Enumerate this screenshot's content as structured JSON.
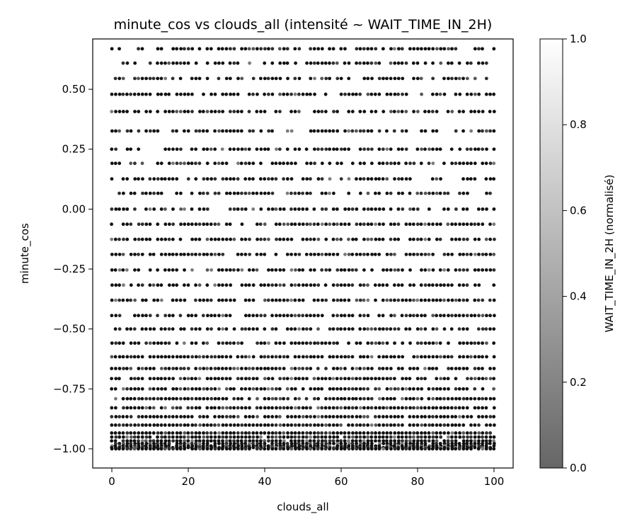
{
  "chart_data": {
    "type": "scatter",
    "title": "minute_cos vs clouds_all (intensité ~ WAIT_TIME_IN_2H)",
    "xlabel": "clouds_all",
    "ylabel": "minute_cos",
    "xlim": [
      -5,
      105
    ],
    "ylim": [
      -1.08,
      0.71
    ],
    "xticks": [
      0,
      20,
      40,
      60,
      80,
      100
    ],
    "xtick_labels": [
      "0",
      "20",
      "40",
      "60",
      "80",
      "100"
    ],
    "yticks": [
      -1.0,
      -0.75,
      -0.5,
      -0.25,
      0.0,
      0.25,
      0.5
    ],
    "ytick_labels": [
      "−1.00",
      "−0.75",
      "−0.50",
      "−0.25",
      "0.00",
      "0.25",
      "0.50"
    ],
    "grid": false,
    "x_range": [
      0,
      100
    ],
    "y_levels": [
      0.669,
      0.609,
      0.545,
      0.479,
      0.407,
      0.326,
      0.25,
      0.191,
      0.126,
      0.066,
      0.0,
      -0.063,
      -0.126,
      -0.189,
      -0.254,
      -0.317,
      -0.38,
      -0.444,
      -0.5,
      -0.559,
      -0.616,
      -0.665,
      -0.707,
      -0.75,
      -0.791,
      -0.829,
      -0.866,
      -0.901,
      -0.934,
      -0.951,
      -0.967,
      -0.978,
      -0.988,
      -0.995,
      -1.0
    ],
    "colormap": "gray (alpha 0.6 on white)",
    "colorbar": {
      "label": "WAIT_TIME_IN_2H (normalisé)",
      "range": [
        0.0,
        1.0
      ],
      "ticks": [
        0.0,
        0.2,
        0.4,
        0.6,
        0.8,
        1.0
      ],
      "tick_labels": [
        "0.0",
        "0.2",
        "0.4",
        "0.6",
        "0.8",
        "1.0"
      ],
      "color_low": "#666666",
      "color_high": "#ffffff"
    },
    "point_color_typical": "#1a1a1a"
  }
}
